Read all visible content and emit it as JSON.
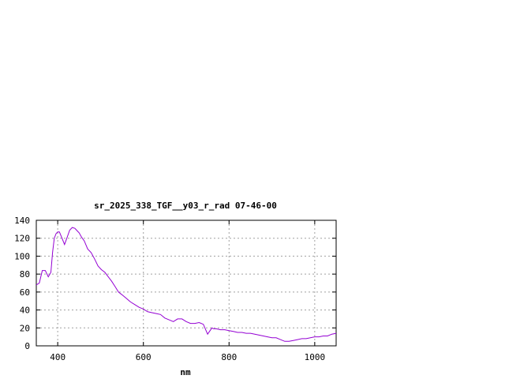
{
  "chart_data": {
    "type": "line",
    "title": "sr_2025_338_TGF__y03_r_rad 07-46-00",
    "xlabel": "nm",
    "ylabel": "",
    "xlim": [
      350,
      1050
    ],
    "ylim": [
      0,
      140
    ],
    "xticks": [
      400,
      600,
      800,
      1000
    ],
    "yticks": [
      0,
      20,
      40,
      60,
      80,
      100,
      120,
      140
    ],
    "grid": true,
    "legend": "none",
    "series": [
      {
        "color": "#9400d3",
        "x": [
          350,
          357,
          364,
          371,
          378,
          384,
          388,
          392,
          396,
          400,
          404,
          410,
          416,
          422,
          428,
          434,
          440,
          446,
          450,
          456,
          462,
          470,
          478,
          486,
          494,
          502,
          510,
          518,
          526,
          534,
          542,
          550,
          560,
          570,
          580,
          590,
          600,
          610,
          620,
          630,
          640,
          650,
          660,
          670,
          680,
          690,
          700,
          710,
          720,
          730,
          740,
          750,
          760,
          764,
          770,
          780,
          790,
          800,
          810,
          820,
          830,
          840,
          850,
          860,
          870,
          880,
          890,
          900,
          910,
          920,
          930,
          940,
          950,
          960,
          970,
          980,
          990,
          1000,
          1010,
          1020,
          1030,
          1040,
          1050
        ],
        "y": [
          68,
          70,
          84,
          84,
          77,
          82,
          104,
          120,
          125,
          127,
          127,
          120,
          113,
          121,
          129,
          132,
          131,
          128,
          126,
          121,
          117,
          108,
          104,
          97,
          89,
          85,
          82,
          77,
          72,
          66,
          60,
          57,
          53,
          49,
          46,
          43,
          41,
          38,
          37,
          36,
          35,
          31,
          29,
          27,
          30,
          30,
          27,
          25,
          25,
          26,
          24,
          13,
          20,
          19,
          19,
          18,
          18,
          17,
          16,
          15,
          15,
          14,
          14,
          13,
          12,
          11,
          10,
          9,
          9,
          7,
          5,
          5,
          6,
          7,
          8,
          8,
          9,
          10,
          10,
          11,
          11,
          13,
          14
        ]
      }
    ]
  }
}
